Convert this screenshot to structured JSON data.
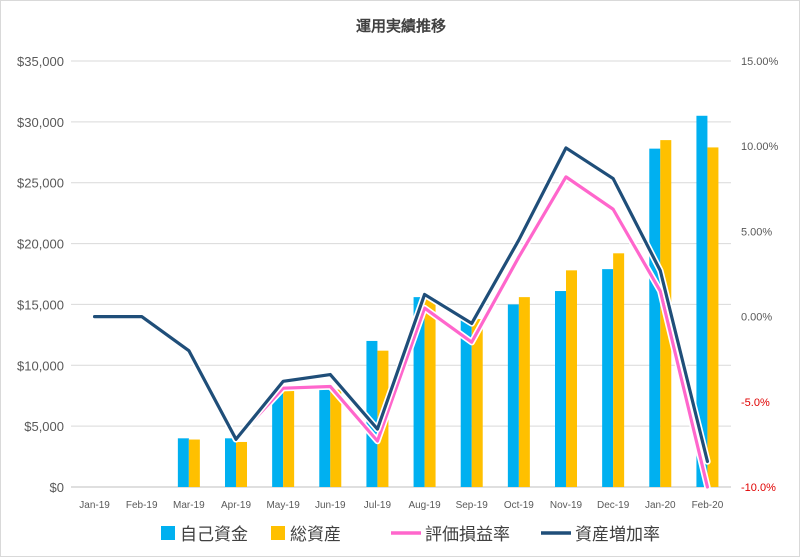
{
  "chart_data": {
    "type": "bar",
    "title": "運用実績推移",
    "categories": [
      "Jan-19",
      "Feb-19",
      "Mar-19",
      "Apr-19",
      "May-19",
      "Jun-19",
      "Jul-19",
      "Aug-19",
      "Sep-19",
      "Oct-19",
      "Nov-19",
      "Dec-19",
      "Jan-20",
      "Feb-20"
    ],
    "y_left": {
      "range": [
        0,
        35000
      ],
      "ticks": [
        0,
        5000,
        10000,
        15000,
        20000,
        25000,
        30000,
        35000
      ],
      "tick_labels": [
        "$0",
        "$5,000",
        "$10,000",
        "$15,000",
        "$20,000",
        "$25,000",
        "$30,000",
        "$35,000"
      ]
    },
    "y_right": {
      "range": [
        -0.1,
        0.15
      ],
      "ticks": [
        -0.1,
        -0.05,
        0,
        0.05,
        0.1,
        0.15
      ],
      "tick_labels": [
        "-10.0%",
        "-5.0%",
        "0.00%",
        "5.00%",
        "10.00%",
        "15.00%"
      ]
    },
    "grid": true,
    "legend_position": "bottom",
    "bar_series": [
      {
        "name": "自己資金",
        "color": "#00b0f0",
        "values": [
          0,
          0,
          4000,
          4000,
          8000,
          8000,
          12000,
          15600,
          13700,
          15000,
          16100,
          17900,
          27800,
          30500
        ]
      },
      {
        "name": "総資産",
        "color": "#ffc000",
        "values": [
          0,
          0,
          3900,
          3700,
          7950,
          8000,
          11200,
          15600,
          13800,
          15600,
          17800,
          19200,
          28500,
          27900
        ]
      }
    ],
    "line_series": [
      {
        "name": "評価損益率",
        "color": "#ff66cc",
        "values": [
          0.0,
          0.0,
          -0.02,
          -0.072,
          -0.042,
          -0.041,
          -0.073,
          0.005,
          -0.015,
          0.035,
          0.082,
          0.063,
          0.015,
          -0.1
        ]
      },
      {
        "name": "資産増加率",
        "color": "#1f4e79",
        "values": [
          0.0,
          0.0,
          -0.02,
          -0.072,
          -0.038,
          -0.034,
          -0.066,
          0.013,
          -0.004,
          0.045,
          0.099,
          0.081,
          0.027,
          -0.085
        ]
      }
    ]
  }
}
